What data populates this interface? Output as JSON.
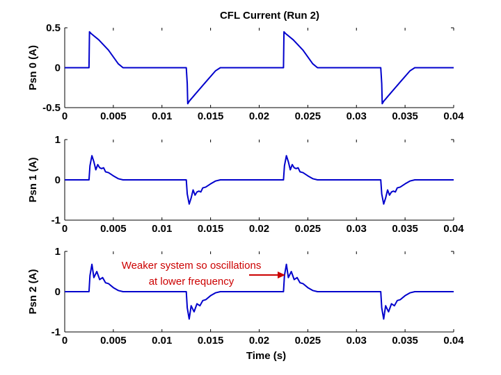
{
  "chart_data": [
    {
      "type": "line",
      "title": "CFL Current (Run 2)",
      "ylabel": "Psn 0 (A)",
      "xlabel": "",
      "xlim": [
        0,
        0.04
      ],
      "ylim": [
        -0.5,
        0.5
      ],
      "xticks": [
        "0",
        "0.005",
        "0.01",
        "0.015",
        "0.02",
        "0.025",
        "0.03",
        "0.035",
        "0.04"
      ],
      "yticks": [
        "0.5",
        "0",
        "-0.5"
      ],
      "color": "#0000cc",
      "series": [
        {
          "x": [
            0,
            0.0025,
            0.00255,
            0.0027,
            0.0035,
            0.0045,
            0.0055,
            0.006,
            0.009,
            0.0125,
            0.0126,
            0.01265,
            0.0128,
            0.0135,
            0.0145,
            0.0155,
            0.016,
            0.019,
            0.0225,
            0.02255,
            0.0227,
            0.0235,
            0.0245,
            0.0255,
            0.026,
            0.029,
            0.0325,
            0.0326,
            0.03265,
            0.0328,
            0.0335,
            0.0345,
            0.0355,
            0.036,
            0.04
          ],
          "y": [
            0,
            0,
            0.45,
            0.43,
            0.35,
            0.22,
            0.05,
            0,
            0,
            0,
            -0.2,
            -0.45,
            -0.42,
            -0.32,
            -0.18,
            -0.04,
            0,
            0,
            0,
            0.45,
            0.43,
            0.35,
            0.22,
            0.05,
            0,
            0,
            0,
            -0.2,
            -0.45,
            -0.42,
            -0.32,
            -0.18,
            -0.04,
            0,
            0
          ]
        }
      ]
    },
    {
      "type": "line",
      "title": "",
      "ylabel": "Psn 1 (A)",
      "xlabel": "",
      "xlim": [
        0,
        0.04
      ],
      "ylim": [
        -1,
        1
      ],
      "xticks": [
        "0",
        "0.005",
        "0.01",
        "0.015",
        "0.02",
        "0.025",
        "0.03",
        "0.035",
        "0.04"
      ],
      "yticks": [
        "1",
        "0",
        "-1"
      ],
      "color": "#0000cc",
      "series": [
        {
          "x": [
            0,
            0.0025,
            0.0026,
            0.0028,
            0.003,
            0.0032,
            0.0034,
            0.0036,
            0.0038,
            0.004,
            0.0042,
            0.0045,
            0.005,
            0.0055,
            0.006,
            0.0125,
            0.0126,
            0.0128,
            0.013,
            0.0132,
            0.0134,
            0.0136,
            0.0138,
            0.014,
            0.0142,
            0.0145,
            0.015,
            0.0155,
            0.016,
            0.0225,
            0.0226,
            0.0228,
            0.023,
            0.0232,
            0.0234,
            0.0236,
            0.0238,
            0.024,
            0.0242,
            0.0245,
            0.025,
            0.0255,
            0.026,
            0.0325,
            0.0326,
            0.0328,
            0.033,
            0.0332,
            0.0334,
            0.0336,
            0.0338,
            0.034,
            0.0342,
            0.0345,
            0.035,
            0.0355,
            0.036,
            0.04
          ],
          "y": [
            0,
            0,
            0.35,
            0.6,
            0.45,
            0.25,
            0.38,
            0.3,
            0.28,
            0.3,
            0.2,
            0.18,
            0.1,
            0.03,
            0,
            0,
            -0.35,
            -0.6,
            -0.45,
            -0.25,
            -0.38,
            -0.3,
            -0.28,
            -0.3,
            -0.2,
            -0.18,
            -0.1,
            -0.03,
            0,
            0,
            0.35,
            0.6,
            0.45,
            0.25,
            0.38,
            0.3,
            0.28,
            0.3,
            0.2,
            0.18,
            0.1,
            0.03,
            0,
            0,
            -0.35,
            -0.6,
            -0.45,
            -0.25,
            -0.38,
            -0.3,
            -0.28,
            -0.3,
            -0.2,
            -0.18,
            -0.1,
            -0.03,
            0,
            0
          ]
        }
      ]
    },
    {
      "type": "line",
      "title": "",
      "ylabel": "Psn 2 (A)",
      "xlabel": "Time (s)",
      "xlim": [
        0,
        0.04
      ],
      "ylim": [
        -1,
        1
      ],
      "xticks": [
        "0",
        "0.005",
        "0.01",
        "0.015",
        "0.02",
        "0.025",
        "0.03",
        "0.035",
        "0.04"
      ],
      "yticks": [
        "1",
        "0",
        "-1"
      ],
      "color": "#0000cc",
      "annotation": "Weaker system so oscillations at lower frequency",
      "annotation_lines": [
        "Weaker system so oscillations",
        "at lower frequency"
      ],
      "annotation_color": "#cc0000",
      "series": [
        {
          "x": [
            0,
            0.0025,
            0.0026,
            0.0028,
            0.003,
            0.0033,
            0.0036,
            0.0039,
            0.0042,
            0.0045,
            0.005,
            0.0055,
            0.006,
            0.0125,
            0.0126,
            0.0128,
            0.013,
            0.0133,
            0.0136,
            0.0139,
            0.0142,
            0.0145,
            0.015,
            0.0155,
            0.016,
            0.0225,
            0.0226,
            0.0228,
            0.023,
            0.0233,
            0.0236,
            0.0239,
            0.0242,
            0.0245,
            0.025,
            0.0255,
            0.026,
            0.0325,
            0.0326,
            0.0328,
            0.033,
            0.0333,
            0.0336,
            0.0339,
            0.0342,
            0.0345,
            0.035,
            0.0355,
            0.036,
            0.04
          ],
          "y": [
            0,
            0,
            0.4,
            0.68,
            0.35,
            0.5,
            0.3,
            0.35,
            0.22,
            0.2,
            0.1,
            0.03,
            0,
            0,
            -0.4,
            -0.68,
            -0.35,
            -0.5,
            -0.3,
            -0.35,
            -0.22,
            -0.2,
            -0.1,
            -0.03,
            0,
            0,
            0.4,
            0.68,
            0.35,
            0.5,
            0.3,
            0.35,
            0.22,
            0.2,
            0.1,
            0.03,
            0,
            0,
            -0.4,
            -0.68,
            -0.35,
            -0.5,
            -0.3,
            -0.35,
            -0.22,
            -0.2,
            -0.1,
            -0.03,
            0,
            0
          ]
        }
      ]
    }
  ]
}
